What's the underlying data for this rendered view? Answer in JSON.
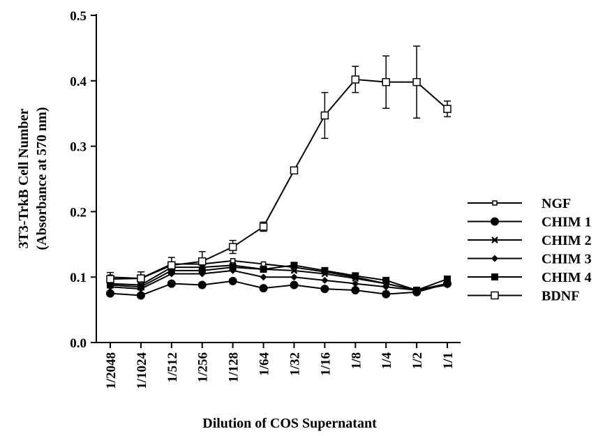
{
  "chart_data": {
    "type": "line",
    "xlabel": "Dilution of COS Supernatant",
    "ylabel": [
      "3T3-TrkB Cell Number",
      "(Absorbance at 570 nm)"
    ],
    "categories": [
      "1/2048",
      "1/1024",
      "1/512",
      "1/256",
      "1/128",
      "1/64",
      "1/32",
      "1/16",
      "1/8",
      "1/4",
      "1/2",
      "1/1"
    ],
    "ylim": [
      0,
      0.5
    ],
    "yticks": [
      {
        "value": 0,
        "label": "0.0"
      },
      0.1,
      0.2,
      0.3,
      0.4,
      0.5
    ],
    "series": [
      {
        "name": "NGF",
        "color": "#000000",
        "marker": "square-small",
        "values": [
          0.1,
          0.098,
          0.12,
          0.12,
          0.125,
          0.12,
          0.115,
          0.108,
          0.1,
          0.09,
          0.08,
          0.09
        ]
      },
      {
        "name": "CHIM 1",
        "color": "#000000",
        "marker": "circle",
        "values": [
          0.075,
          0.072,
          0.09,
          0.088,
          0.094,
          0.083,
          0.088,
          0.082,
          0.08,
          0.074,
          0.077,
          0.09
        ]
      },
      {
        "name": "CHIM 2",
        "color": "#000000",
        "marker": "x",
        "values": [
          0.09,
          0.088,
          0.115,
          0.115,
          0.118,
          0.112,
          0.11,
          0.105,
          0.098,
          0.09,
          0.08,
          0.09
        ]
      },
      {
        "name": "CHIM 3",
        "color": "#000000",
        "marker": "diamond",
        "values": [
          0.085,
          0.082,
          0.105,
          0.105,
          0.11,
          0.1,
          0.1,
          0.095,
          0.09,
          0.085,
          0.08,
          0.088
        ]
      },
      {
        "name": "CHIM 4",
        "color": "#000000",
        "marker": "square",
        "values": [
          0.088,
          0.085,
          0.11,
          0.11,
          0.115,
          0.112,
          0.118,
          0.11,
          0.102,
          0.095,
          0.08,
          0.097
        ]
      },
      {
        "name": "BDNF",
        "color": "#000000",
        "marker": "square-open",
        "values": [
          0.097,
          0.098,
          0.118,
          0.124,
          0.146,
          0.177,
          0.263,
          0.347,
          0.402,
          0.398,
          0.398,
          0.357
        ],
        "errors": [
          0.01,
          0.01,
          0.012,
          0.015,
          0.01,
          0.007,
          0.005,
          0.035,
          0.02,
          0.04,
          0.055,
          0.012
        ]
      }
    ],
    "legend": "right"
  }
}
